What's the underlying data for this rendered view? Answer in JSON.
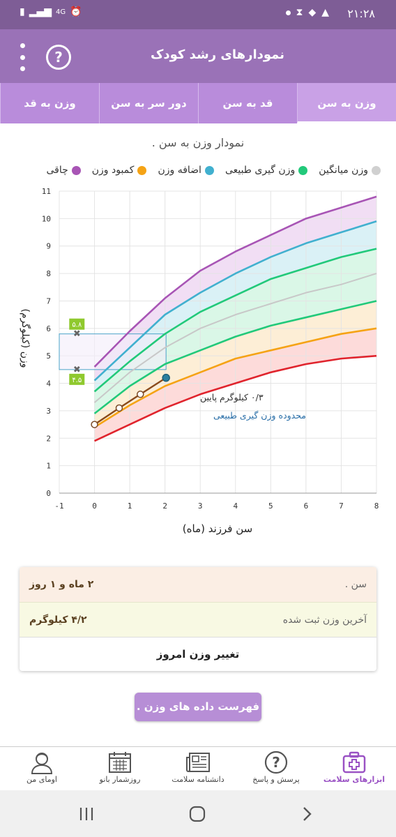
{
  "status_bar": {
    "time": "۲۱:۲۸",
    "network": "4G"
  },
  "app_bar": {
    "title": "نمودارهای رشد کودک",
    "help_glyph": "?"
  },
  "tabs": [
    {
      "label": "وزن به سن",
      "active": true
    },
    {
      "label": "قد به سن",
      "active": false
    },
    {
      "label": "دور سر به سن",
      "active": false
    },
    {
      "label": "وزن به قد",
      "active": false
    }
  ],
  "chart": {
    "title": "نمودار وزن به سن .",
    "legend": [
      {
        "label": "چاقی",
        "color": "#a855b5"
      },
      {
        "label": "کمبود وزن",
        "color": "#f5a315"
      },
      {
        "label": "اضافه وزن",
        "color": "#41b0cf"
      },
      {
        "label": "وزن گیری طبیعی",
        "color": "#22c97a"
      },
      {
        "label": "وزن میانگین",
        "color": "#d0d0d0"
      }
    ]
  },
  "chart_data": {
    "type": "line",
    "xlabel": "سن فرزند (ماه)",
    "ylabel": "وزن (کیلوگرم)",
    "xlim": [
      -1,
      8
    ],
    "ylim": [
      0,
      11
    ],
    "x_ticks": [
      "-1",
      "0",
      "1",
      "2",
      "3",
      "4",
      "5",
      "6",
      "7",
      "8"
    ],
    "y_ticks": [
      "0",
      "1",
      "2",
      "3",
      "4",
      "5",
      "6",
      "7",
      "8",
      "9",
      "10",
      "11"
    ],
    "x": [
      0,
      1,
      2,
      3,
      4,
      5,
      6,
      7,
      8
    ],
    "series": [
      {
        "name": "چاقی",
        "color": "#a855b5",
        "values": [
          4.6,
          5.9,
          7.1,
          8.1,
          8.8,
          9.4,
          10.0,
          10.4,
          10.8
        ]
      },
      {
        "name": "اضافه وزن",
        "color": "#41b0cf",
        "values": [
          4.1,
          5.3,
          6.5,
          7.3,
          8.0,
          8.6,
          9.1,
          9.5,
          9.9
        ]
      },
      {
        "color": "#22c97a",
        "values": [
          3.7,
          4.8,
          5.8,
          6.6,
          7.2,
          7.8,
          8.2,
          8.6,
          8.9
        ]
      },
      {
        "name": "وزن میانگین",
        "color": "#c8c8c8",
        "values": [
          3.3,
          4.4,
          5.3,
          6.0,
          6.5,
          6.9,
          7.3,
          7.6,
          8.0
        ]
      },
      {
        "color": "#22c97a",
        "values": [
          2.9,
          3.9,
          4.7,
          5.2,
          5.7,
          6.1,
          6.4,
          6.7,
          7.0
        ]
      },
      {
        "name": "کمبود وزن",
        "color": "#f5a315",
        "values": [
          2.4,
          3.2,
          3.9,
          4.4,
          4.9,
          5.2,
          5.5,
          5.8,
          6.0
        ]
      },
      {
        "color": "#e0242d",
        "values": [
          1.9,
          2.5,
          3.1,
          3.6,
          4.0,
          4.4,
          4.7,
          4.9,
          5.0
        ]
      }
    ],
    "user_points": {
      "x": [
        0,
        0.7,
        1.3,
        2.03
      ],
      "y": [
        2.5,
        3.1,
        3.6,
        4.2
      ]
    },
    "range_box": {
      "x0": -1,
      "x1": 2.03,
      "y0": 4.5,
      "y1": 5.8,
      "low_label": "۴.۵",
      "high_label": "۵.۸"
    },
    "annotations": [
      "۰/۳ کیلوگرم پایین",
      "محدوده وزن گیری طبیعی"
    ]
  },
  "info_card": {
    "age_label": "سن .",
    "age_value": "۲ ماه و ۱ روز",
    "weight_label": "آخرین وزن ثبت شده",
    "weight_value": "۴/۲ کیلوگرم",
    "change_button": "تغییر وزن امروز"
  },
  "list_button": "فهرست داده های وزن .",
  "bottom_nav": [
    {
      "label": "ابزارهای سلامت",
      "icon": "medical-kit-icon",
      "active": true
    },
    {
      "label": "پرسش و پاسخ",
      "icon": "question-icon",
      "active": false
    },
    {
      "label": "دانشنامه سلامت",
      "icon": "newspaper-icon",
      "active": false
    },
    {
      "label": "روزشمار بانو",
      "icon": "calendar-icon",
      "active": false
    },
    {
      "label": "اومای من",
      "icon": "profile-icon",
      "active": false
    }
  ]
}
